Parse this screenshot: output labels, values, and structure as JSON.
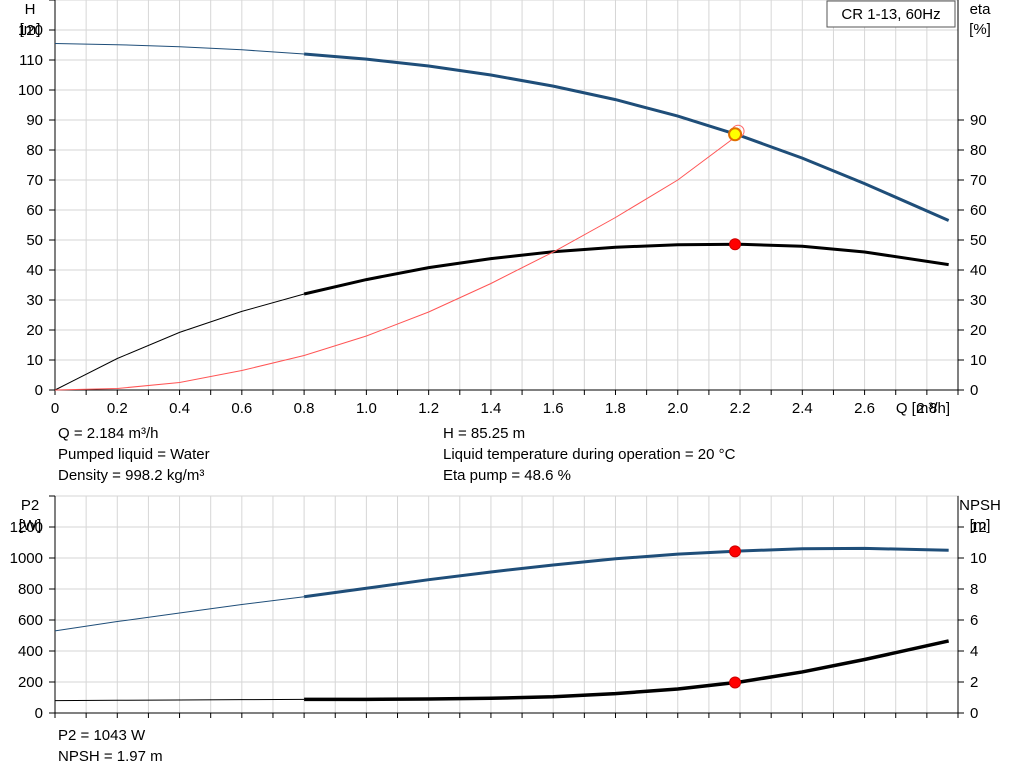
{
  "chart_data": [
    {
      "type": "line",
      "title": "CR 1-13, 60Hz",
      "xlabel": "Q [m³/h]",
      "xlim": [
        0,
        2.9
      ],
      "x_ticks": [
        "0",
        "0.2",
        "0.4",
        "0.6",
        "0.8",
        "1.0",
        "1.2",
        "1.4",
        "1.6",
        "1.8",
        "2.0",
        "2.2",
        "2.4",
        "2.6",
        "2.8"
      ],
      "y_left": {
        "label_top": "H",
        "label_unit": "[m]",
        "ylim": [
          0,
          130
        ],
        "ticks": [
          "0",
          "10",
          "20",
          "30",
          "40",
          "50",
          "60",
          "70",
          "80",
          "90",
          "100",
          "110",
          "120"
        ]
      },
      "y_right": {
        "label_top": "eta",
        "label_unit": "[%]",
        "ylim": [
          0,
          130
        ],
        "ticks": [
          "0",
          "10",
          "20",
          "30",
          "40",
          "50",
          "60",
          "70",
          "80",
          "90"
        ]
      },
      "grid": true,
      "series": [
        {
          "axis": "left",
          "color": "#1f4e79",
          "thin_until": 0.8,
          "x": [
            0,
            0.2,
            0.4,
            0.6,
            0.8,
            1.0,
            1.2,
            1.4,
            1.6,
            1.8,
            2.0,
            2.2,
            2.4,
            2.6,
            2.87
          ],
          "y": [
            115.5,
            115.1,
            114.4,
            113.4,
            112.0,
            110.3,
            108.0,
            105.0,
            101.3,
            96.8,
            91.3,
            84.8,
            77.3,
            68.8,
            56.5
          ]
        },
        {
          "axis": "right",
          "color": "#000000",
          "thin_until": 0.8,
          "x": [
            0,
            0.2,
            0.4,
            0.6,
            0.8,
            1.0,
            1.2,
            1.4,
            1.6,
            1.8,
            2.0,
            2.2,
            2.4,
            2.6,
            2.87
          ],
          "y": [
            0,
            10.5,
            19.2,
            26.2,
            32.0,
            36.8,
            40.8,
            43.8,
            46.1,
            47.6,
            48.4,
            48.6,
            47.9,
            46.0,
            41.8
          ]
        },
        {
          "axis": "right",
          "color": "#ff5555",
          "thin": true,
          "x": [
            0,
            0.2,
            0.4,
            0.6,
            0.8,
            1.0,
            1.2,
            1.4,
            1.6,
            1.8,
            2.0,
            2.2
          ],
          "y": [
            0,
            0.5,
            2.5,
            6.5,
            11.5,
            18,
            26,
            35.5,
            46,
            57.5,
            70,
            85.5
          ]
        }
      ],
      "points": [
        {
          "x": 2.184,
          "y": 85.25,
          "axis": "left",
          "style": "yellow"
        },
        {
          "x": 2.184,
          "y": 48.6,
          "axis": "right",
          "style": "red"
        }
      ]
    },
    {
      "type": "line",
      "xlim": [
        0,
        2.9
      ],
      "y_left": {
        "label_top": "P2",
        "label_unit": "[W]",
        "ylim": [
          0,
          1400
        ],
        "ticks": [
          "0",
          "200",
          "400",
          "600",
          "800",
          "1000",
          "1200"
        ]
      },
      "y_right": {
        "label_top": "NPSH",
        "label_unit": "[m]",
        "ylim": [
          0,
          14
        ],
        "ticks": [
          "0",
          "2",
          "4",
          "6",
          "8",
          "10",
          "12"
        ]
      },
      "grid": true,
      "series": [
        {
          "axis": "left",
          "color": "#1f4e79",
          "thin_until": 0.8,
          "x": [
            0,
            0.2,
            0.4,
            0.6,
            0.8,
            1.0,
            1.2,
            1.4,
            1.6,
            1.8,
            2.0,
            2.2,
            2.4,
            2.6,
            2.87
          ],
          "y": [
            530,
            590,
            645,
            700,
            750,
            805,
            860,
            910,
            955,
            995,
            1025,
            1045,
            1060,
            1062,
            1050
          ]
        },
        {
          "axis": "right",
          "color": "#000000",
          "thin_until": 0.8,
          "thick": true,
          "x": [
            0,
            0.2,
            0.4,
            0.6,
            0.8,
            1.0,
            1.2,
            1.4,
            1.6,
            1.8,
            2.0,
            2.2,
            2.4,
            2.6,
            2.87
          ],
          "y": [
            0.8,
            0.82,
            0.84,
            0.86,
            0.88,
            0.88,
            0.9,
            0.95,
            1.05,
            1.25,
            1.55,
            2.0,
            2.65,
            3.45,
            4.65
          ]
        }
      ],
      "points": [
        {
          "x": 2.184,
          "y": 1043,
          "axis": "left",
          "style": "red"
        },
        {
          "x": 2.184,
          "y": 1.97,
          "axis": "right",
          "style": "red"
        }
      ]
    }
  ],
  "info_top": {
    "left": [
      "Q = 2.184 m³/h",
      "Pumped liquid = Water",
      "Density = 998.2 kg/m³"
    ],
    "right": [
      "H = 85.25 m",
      "Liquid temperature during operation = 20 °C",
      "Eta pump = 48.6 %"
    ]
  },
  "info_bottom": {
    "left": [
      "P2 = 1043 W",
      "NPSH = 1.97 m"
    ]
  }
}
